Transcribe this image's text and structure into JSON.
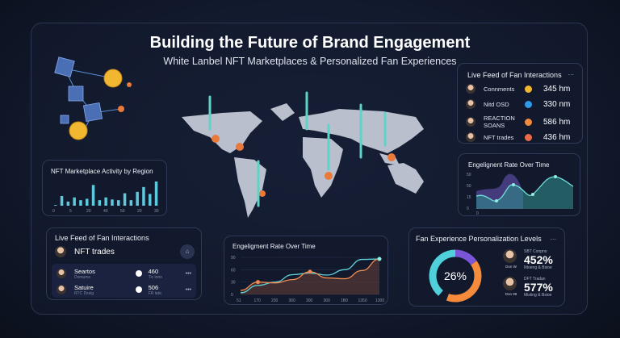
{
  "header": {
    "title": "Building the Future of Brand Engagement",
    "subtitle": "White Lanbel NFT Marketplaces & Personalized Fan Experiences"
  },
  "live_feed_top": {
    "title": "Live Feed of Fan Interactions",
    "menu": "...",
    "items": [
      {
        "label": "Connments",
        "value": "345 hm",
        "color": "#f2b731"
      },
      {
        "label": "Nitd OSD",
        "value": "330 nm",
        "color": "#2f9be8"
      },
      {
        "label": "REACTION SOANS",
        "value": "586 hm",
        "color": "#f08a3c"
      },
      {
        "label": "NFT trades",
        "value": "436 hm",
        "color": "#ea6a4a"
      }
    ]
  },
  "nft_activity": {
    "title": "NFT Marketplace Activity by Region",
    "ticks": [
      "0",
      "5",
      "20",
      "40",
      "50",
      "20",
      "30"
    ],
    "values": [
      1,
      14,
      6,
      12,
      8,
      10,
      30,
      8,
      12,
      9,
      8,
      18,
      8,
      20,
      27,
      17,
      35
    ]
  },
  "engagement_right": {
    "title": "Engelignent Rate Over Time",
    "yticks": [
      "50",
      "50",
      "15",
      "0"
    ],
    "xtick": "0"
  },
  "live_feed_bottom": {
    "title": "Live Feed of Fan Interactions",
    "header_label": "NFT trades",
    "items": [
      {
        "name": "Seartos",
        "sub": "Domums",
        "value": "460",
        "value_sub": "Tic lorio"
      },
      {
        "name": "Satuire",
        "sub": "RTC Dssig",
        "value": "506",
        "value_sub": "FR latic"
      }
    ]
  },
  "engagement_mid": {
    "title": "Engeligment Rate Over Time",
    "yticks": [
      "90",
      "60",
      "30",
      "0"
    ],
    "xticks": [
      "51",
      "170",
      "230",
      "360",
      "300",
      "360",
      "1B0",
      "1350",
      "1300"
    ],
    "series": [
      {
        "name": "cyan",
        "color": "#5fd3d8",
        "values": [
          4,
          22,
          30,
          48,
          52,
          47,
          60,
          85,
          86
        ]
      },
      {
        "name": "orange",
        "color": "#f08a4f",
        "values": [
          10,
          30,
          28,
          36,
          55,
          40,
          38,
          58,
          86
        ]
      }
    ]
  },
  "personalization": {
    "title": "Fan Experience Personalization Levels",
    "menu": "...",
    "center_label": "26%",
    "segments": [
      {
        "value": 45,
        "color": "#4fd0da"
      },
      {
        "value": 15,
        "color": "#7a55d8"
      },
      {
        "value": 30,
        "color": "#f58b3b"
      }
    ],
    "people": [
      {
        "tag": "Don W",
        "caption": "SBT Conpno",
        "value": "452%",
        "sub": "Ntoeng & Bsioe"
      },
      {
        "tag": "Don 98",
        "caption": "DFT Tradan",
        "value": "577%",
        "sub": "Misting & Bsioe"
      }
    ]
  }
}
